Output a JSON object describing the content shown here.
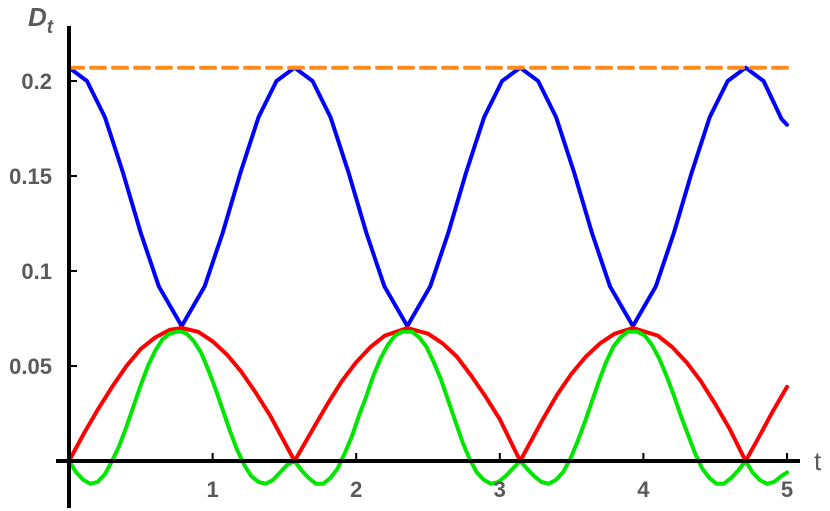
{
  "chart_data": {
    "type": "line",
    "xlabel": "t",
    "ylabel": {
      "main": "D",
      "sub": "t"
    },
    "xlim": [
      0,
      5
    ],
    "ylim": [
      0,
      0.22
    ],
    "grid": false,
    "legend": "none",
    "xticks": [
      {
        "value": 1,
        "label": "1"
      },
      {
        "value": 2,
        "label": "2"
      },
      {
        "value": 3,
        "label": "3"
      },
      {
        "value": 4,
        "label": "4"
      },
      {
        "value": 5,
        "label": "5"
      }
    ],
    "yticks": [
      {
        "value": 0.05,
        "label": "0.05"
      },
      {
        "value": 0.1,
        "label": "0.1"
      },
      {
        "value": 0.15,
        "label": "0.15"
      },
      {
        "value": 0.2,
        "label": "0.2"
      }
    ],
    "series": [
      {
        "color": "#0000ff",
        "dashed": false,
        "x": [
          0,
          0.125,
          0.25,
          0.375,
          0.5,
          0.625,
          0.785,
          0.945,
          1.07,
          1.195,
          1.32,
          1.445,
          1.571,
          1.696,
          1.821,
          1.946,
          2.071,
          2.196,
          2.356,
          2.516,
          2.641,
          2.766,
          2.891,
          3.016,
          3.142,
          3.267,
          3.392,
          3.517,
          3.642,
          3.767,
          3.927,
          4.087,
          4.212,
          4.337,
          4.462,
          4.587,
          4.712,
          4.837,
          4.962,
          5.0
        ],
        "y": [
          0.207,
          0.2,
          0.181,
          0.152,
          0.12,
          0.092,
          0.071,
          0.092,
          0.12,
          0.152,
          0.181,
          0.2,
          0.207,
          0.2,
          0.181,
          0.152,
          0.12,
          0.092,
          0.071,
          0.092,
          0.12,
          0.152,
          0.181,
          0.2,
          0.207,
          0.2,
          0.181,
          0.152,
          0.12,
          0.092,
          0.071,
          0.092,
          0.12,
          0.152,
          0.181,
          0.2,
          0.207,
          0.2,
          0.18,
          0.177
        ]
      },
      {
        "color": "#ff0000",
        "dashed": false,
        "x": [
          0,
          0.1,
          0.2,
          0.3,
          0.4,
          0.5,
          0.6,
          0.7,
          0.785,
          0.9,
          1.0,
          1.1,
          1.2,
          1.3,
          1.4,
          1.5,
          1.571,
          1.7,
          1.8,
          1.9,
          2.0,
          2.1,
          2.2,
          2.356,
          2.5,
          2.6,
          2.7,
          2.8,
          2.9,
          3.0,
          3.142,
          3.3,
          3.4,
          3.5,
          3.6,
          3.7,
          3.8,
          3.927,
          4.1,
          4.2,
          4.3,
          4.4,
          4.5,
          4.6,
          4.712,
          4.8,
          4.9,
          5.0
        ],
        "y": [
          0,
          0.014,
          0.027,
          0.039,
          0.05,
          0.059,
          0.065,
          0.069,
          0.07,
          0.068,
          0.063,
          0.056,
          0.047,
          0.036,
          0.024,
          0.01,
          0,
          0.017,
          0.03,
          0.042,
          0.052,
          0.06,
          0.066,
          0.07,
          0.067,
          0.062,
          0.055,
          0.045,
          0.034,
          0.022,
          0,
          0.022,
          0.035,
          0.046,
          0.055,
          0.062,
          0.067,
          0.07,
          0.066,
          0.06,
          0.052,
          0.042,
          0.03,
          0.017,
          0,
          0.012,
          0.026,
          0.039
        ]
      },
      {
        "color": "#00e600",
        "dashed": false,
        "x": [
          0,
          0.05,
          0.1,
          0.15,
          0.2,
          0.25,
          0.3,
          0.35,
          0.4,
          0.45,
          0.5,
          0.55,
          0.6,
          0.65,
          0.7,
          0.75,
          0.785,
          0.82,
          0.87,
          0.92,
          0.97,
          1.02,
          1.07,
          1.12,
          1.17,
          1.22,
          1.27,
          1.32,
          1.37,
          1.42,
          1.47,
          1.52,
          1.571,
          1.62,
          1.67,
          1.72,
          1.77,
          1.82,
          1.87,
          1.92,
          1.97,
          2.02,
          2.07,
          2.12,
          2.17,
          2.22,
          2.27,
          2.32,
          2.356,
          2.39,
          2.44,
          2.49,
          2.54,
          2.59,
          2.64,
          2.69,
          2.74,
          2.79,
          2.84,
          2.89,
          2.94,
          2.99,
          3.04,
          3.09,
          3.142,
          3.19,
          3.24,
          3.29,
          3.34,
          3.39,
          3.44,
          3.49,
          3.54,
          3.59,
          3.64,
          3.69,
          3.74,
          3.79,
          3.84,
          3.89,
          3.927,
          3.96,
          4.01,
          4.06,
          4.11,
          4.16,
          4.21,
          4.26,
          4.31,
          4.36,
          4.41,
          4.46,
          4.51,
          4.56,
          4.61,
          4.66,
          4.712,
          4.76,
          4.81,
          4.86,
          4.91,
          4.96,
          5.0
        ],
        "y": [
          0,
          -0.006,
          -0.01,
          -0.012,
          -0.011,
          -0.007,
          0,
          0.008,
          0.018,
          0.029,
          0.04,
          0.05,
          0.058,
          0.064,
          0.067,
          0.068,
          0.068,
          0.067,
          0.063,
          0.057,
          0.048,
          0.038,
          0.027,
          0.016,
          0.006,
          -0.002,
          -0.008,
          -0.011,
          -0.012,
          -0.01,
          -0.006,
          -0.002,
          0,
          -0.005,
          -0.009,
          -0.012,
          -0.012,
          -0.009,
          -0.004,
          0.004,
          0.013,
          0.024,
          0.034,
          0.045,
          0.054,
          0.061,
          0.066,
          0.068,
          0.068,
          0.068,
          0.065,
          0.06,
          0.052,
          0.043,
          0.032,
          0.021,
          0.01,
          0.001,
          -0.006,
          -0.01,
          -0.012,
          -0.011,
          -0.008,
          -0.004,
          0,
          -0.004,
          -0.008,
          -0.011,
          -0.012,
          -0.01,
          -0.006,
          0.001,
          0.01,
          0.02,
          0.031,
          0.042,
          0.052,
          0.06,
          0.065,
          0.068,
          0.068,
          0.068,
          0.066,
          0.061,
          0.054,
          0.045,
          0.035,
          0.024,
          0.014,
          0.004,
          -0.004,
          -0.009,
          -0.012,
          -0.012,
          -0.009,
          -0.005,
          0,
          -0.006,
          -0.01,
          -0.012,
          -0.011,
          -0.008,
          -0.006
        ]
      },
      {
        "color": "#ff8c1a",
        "dashed": true,
        "x": [
          0,
          5
        ],
        "y": [
          0.207,
          0.207
        ]
      }
    ]
  }
}
